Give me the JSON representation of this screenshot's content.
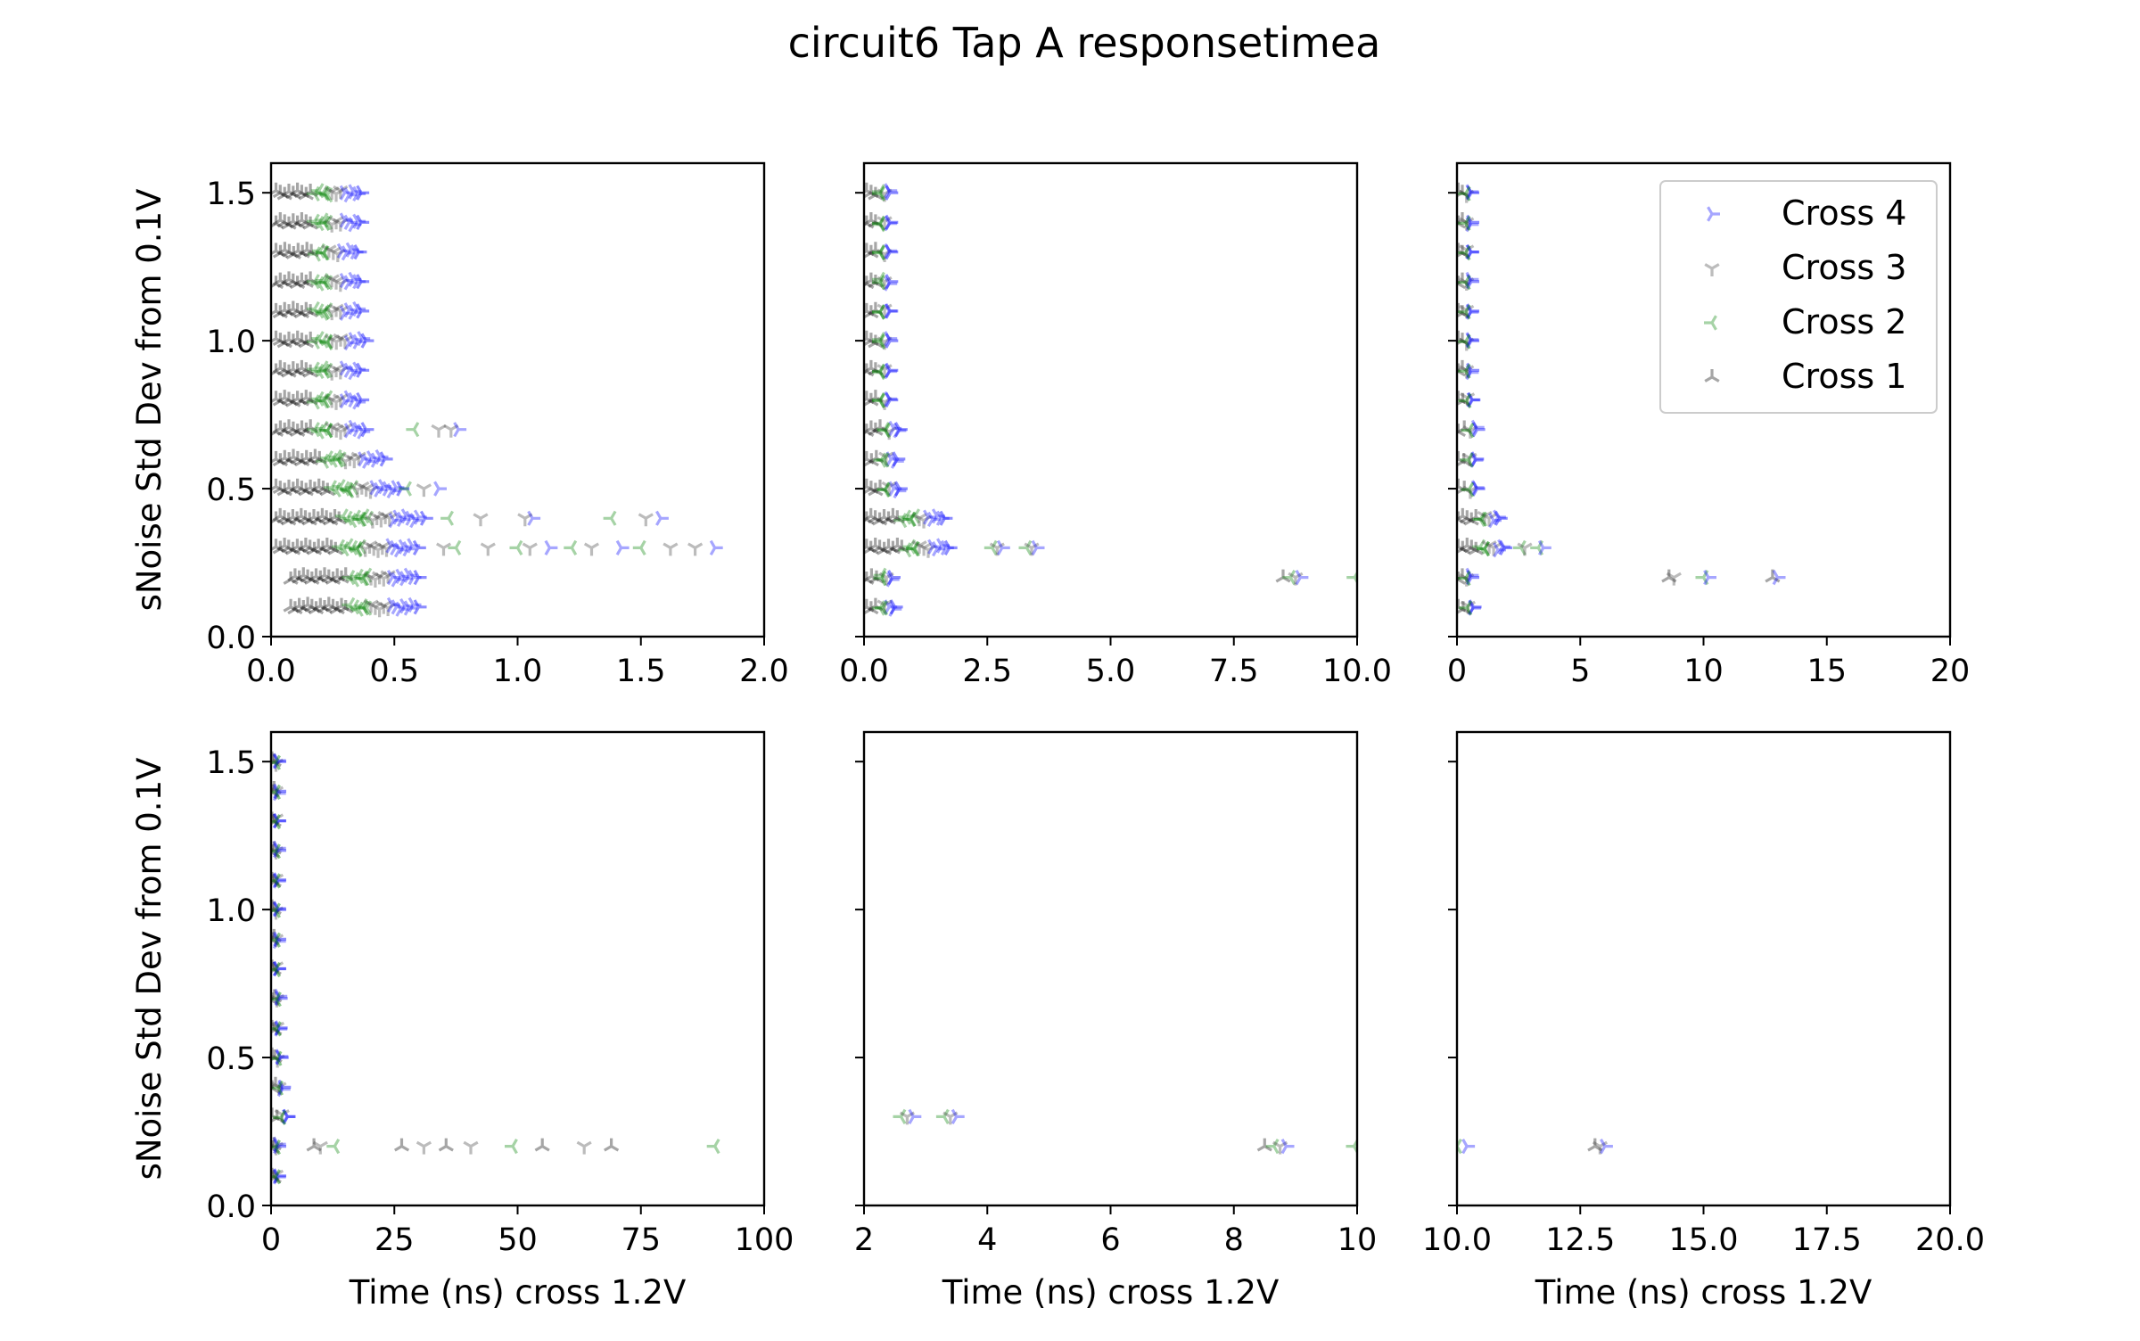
{
  "figure": {
    "title": "circuit6 Tap A responsetimea",
    "colors": {
      "cross4": "#0000ff",
      "cross3": "#404040",
      "cross2": "#008000",
      "cross1": "#000000"
    }
  },
  "legend": {
    "placement": "upper-right of top-right panel",
    "entries": [
      {
        "label": "Cross 4",
        "marker": "tri-right",
        "color": "#0000ff"
      },
      {
        "label": "Cross 3",
        "marker": "tri-down",
        "color": "#404040"
      },
      {
        "label": "Cross 2",
        "marker": "tri-left",
        "color": "#008000"
      },
      {
        "label": "Cross 1",
        "marker": "tri-up",
        "color": "#000000"
      }
    ]
  },
  "chart_data": [
    {
      "type": "scatter",
      "panel": "top-left",
      "xlabel": "",
      "ylabel": "sNoise Std Dev from 0.1V",
      "xlim": [
        0,
        2.0
      ],
      "ylim": [
        0,
        1.6
      ],
      "xticks": [
        "0.0",
        "0.5",
        "1.0",
        "1.5",
        "2.0"
      ],
      "yticks": [
        "0.0",
        "0.5",
        "1.0",
        "1.5"
      ],
      "grid": false,
      "clusters": [
        {
          "y": 1.5,
          "x": [
            0.02,
            0.38
          ]
        },
        {
          "y": 1.4,
          "x": [
            0.02,
            0.38
          ]
        },
        {
          "y": 1.3,
          "x": [
            0.02,
            0.37
          ]
        },
        {
          "y": 1.2,
          "x": [
            0.02,
            0.38
          ]
        },
        {
          "y": 1.1,
          "x": [
            0.02,
            0.38
          ]
        },
        {
          "y": 1.0,
          "x": [
            0.02,
            0.4
          ]
        },
        {
          "y": 0.9,
          "x": [
            0.02,
            0.38
          ]
        },
        {
          "y": 0.8,
          "x": [
            0.02,
            0.38
          ]
        },
        {
          "y": 0.7,
          "x": [
            0.02,
            0.4
          ]
        },
        {
          "y": 0.6,
          "x": [
            0.02,
            0.48
          ]
        },
        {
          "y": 0.5,
          "x": [
            0.02,
            0.55
          ]
        },
        {
          "y": 0.4,
          "x": [
            0.02,
            0.65
          ]
        },
        {
          "y": 0.3,
          "x": [
            0.02,
            0.62
          ]
        },
        {
          "y": 0.2,
          "x": [
            0.08,
            0.62
          ]
        },
        {
          "y": 0.1,
          "x": [
            0.08,
            0.62
          ]
        }
      ],
      "points": [
        {
          "series": "Cross 2",
          "x": 0.58,
          "y": 0.7
        },
        {
          "series": "Cross 3",
          "x": 0.68,
          "y": 0.7
        },
        {
          "series": "Cross 3",
          "x": 0.73,
          "y": 0.7
        },
        {
          "series": "Cross 4",
          "x": 0.76,
          "y": 0.7
        },
        {
          "series": "Cross 2",
          "x": 0.55,
          "y": 0.5
        },
        {
          "series": "Cross 3",
          "x": 0.62,
          "y": 0.5
        },
        {
          "series": "Cross 4",
          "x": 0.68,
          "y": 0.5
        },
        {
          "series": "Cross 2",
          "x": 0.72,
          "y": 0.4
        },
        {
          "series": "Cross 3",
          "x": 0.85,
          "y": 0.4
        },
        {
          "series": "Cross 3",
          "x": 1.03,
          "y": 0.4
        },
        {
          "series": "Cross 4",
          "x": 1.06,
          "y": 0.4
        },
        {
          "series": "Cross 2",
          "x": 1.38,
          "y": 0.4
        },
        {
          "series": "Cross 3",
          "x": 1.52,
          "y": 0.4
        },
        {
          "series": "Cross 4",
          "x": 1.58,
          "y": 0.4
        },
        {
          "series": "Cross 3",
          "x": 0.7,
          "y": 0.3
        },
        {
          "series": "Cross 2",
          "x": 0.75,
          "y": 0.3
        },
        {
          "series": "Cross 3",
          "x": 0.88,
          "y": 0.3
        },
        {
          "series": "Cross 2",
          "x": 1.0,
          "y": 0.3
        },
        {
          "series": "Cross 3",
          "x": 1.05,
          "y": 0.3
        },
        {
          "series": "Cross 4",
          "x": 1.13,
          "y": 0.3
        },
        {
          "series": "Cross 2",
          "x": 1.22,
          "y": 0.3
        },
        {
          "series": "Cross 3",
          "x": 1.3,
          "y": 0.3
        },
        {
          "series": "Cross 4",
          "x": 1.42,
          "y": 0.3
        },
        {
          "series": "Cross 2",
          "x": 1.5,
          "y": 0.3
        },
        {
          "series": "Cross 3",
          "x": 1.62,
          "y": 0.3
        },
        {
          "series": "Cross 3",
          "x": 1.72,
          "y": 0.3
        },
        {
          "series": "Cross 4",
          "x": 1.8,
          "y": 0.3
        }
      ]
    },
    {
      "type": "scatter",
      "panel": "top-middle",
      "xlabel": "",
      "ylabel": "",
      "xlim": [
        0,
        10.0
      ],
      "ylim": [
        0,
        1.6
      ],
      "xticks": [
        "0.0",
        "2.5",
        "5.0",
        "7.5",
        "10.0"
      ],
      "yticks": [],
      "grid": false,
      "clusters": [
        {
          "y": 1.5,
          "x": [
            0.05,
            0.55
          ]
        },
        {
          "y": 1.4,
          "x": [
            0.05,
            0.55
          ]
        },
        {
          "y": 1.3,
          "x": [
            0.05,
            0.55
          ]
        },
        {
          "y": 1.2,
          "x": [
            0.05,
            0.55
          ]
        },
        {
          "y": 1.1,
          "x": [
            0.05,
            0.55
          ]
        },
        {
          "y": 1.0,
          "x": [
            0.05,
            0.55
          ]
        },
        {
          "y": 0.9,
          "x": [
            0.05,
            0.55
          ]
        },
        {
          "y": 0.8,
          "x": [
            0.05,
            0.55
          ]
        },
        {
          "y": 0.7,
          "x": [
            0.05,
            0.75
          ]
        },
        {
          "y": 0.6,
          "x": [
            0.05,
            0.7
          ]
        },
        {
          "y": 0.5,
          "x": [
            0.05,
            0.75
          ]
        },
        {
          "y": 0.4,
          "x": [
            0.05,
            1.7
          ]
        },
        {
          "y": 0.3,
          "x": [
            0.05,
            1.8
          ]
        },
        {
          "y": 0.2,
          "x": [
            0.05,
            0.6
          ]
        },
        {
          "y": 0.1,
          "x": [
            0.05,
            0.65
          ]
        }
      ],
      "points": [
        {
          "series": "Cross 2",
          "x": 2.6,
          "y": 0.3
        },
        {
          "series": "Cross 3",
          "x": 2.7,
          "y": 0.3
        },
        {
          "series": "Cross 4",
          "x": 2.8,
          "y": 0.3
        },
        {
          "series": "Cross 2",
          "x": 3.3,
          "y": 0.3
        },
        {
          "series": "Cross 3",
          "x": 3.4,
          "y": 0.3
        },
        {
          "series": "Cross 4",
          "x": 3.5,
          "y": 0.3
        },
        {
          "series": "Cross 1",
          "x": 8.5,
          "y": 0.2
        },
        {
          "series": "Cross 2",
          "x": 8.65,
          "y": 0.2
        },
        {
          "series": "Cross 3",
          "x": 8.75,
          "y": 0.2
        },
        {
          "series": "Cross 4",
          "x": 8.85,
          "y": 0.2
        },
        {
          "series": "Cross 2",
          "x": 9.95,
          "y": 0.2
        }
      ]
    },
    {
      "type": "scatter",
      "panel": "top-right",
      "xlabel": "",
      "ylabel": "",
      "xlim": [
        0,
        20
      ],
      "ylim": [
        0,
        1.6
      ],
      "xticks": [
        "0",
        "5",
        "10",
        "15",
        "20"
      ],
      "yticks": [],
      "grid": false,
      "clusters": [
        {
          "y": 1.5,
          "x": [
            0.05,
            0.6
          ]
        },
        {
          "y": 1.4,
          "x": [
            0.05,
            0.6
          ]
        },
        {
          "y": 1.3,
          "x": [
            0.05,
            0.6
          ]
        },
        {
          "y": 1.2,
          "x": [
            0.05,
            0.6
          ]
        },
        {
          "y": 1.1,
          "x": [
            0.05,
            0.6
          ]
        },
        {
          "y": 1.0,
          "x": [
            0.05,
            0.6
          ]
        },
        {
          "y": 0.9,
          "x": [
            0.05,
            0.6
          ]
        },
        {
          "y": 0.8,
          "x": [
            0.05,
            0.65
          ]
        },
        {
          "y": 0.7,
          "x": [
            0.05,
            0.85
          ]
        },
        {
          "y": 0.6,
          "x": [
            0.05,
            0.8
          ]
        },
        {
          "y": 0.5,
          "x": [
            0.05,
            0.85
          ]
        },
        {
          "y": 0.4,
          "x": [
            0.05,
            1.8
          ]
        },
        {
          "y": 0.3,
          "x": [
            0.05,
            2.0
          ]
        },
        {
          "y": 0.2,
          "x": [
            0.05,
            0.6
          ]
        },
        {
          "y": 0.1,
          "x": [
            0.05,
            0.7
          ]
        }
      ],
      "points": [
        {
          "series": "Cross 2",
          "x": 2.6,
          "y": 0.3
        },
        {
          "series": "Cross 3",
          "x": 2.75,
          "y": 0.3
        },
        {
          "series": "Cross 2",
          "x": 3.3,
          "y": 0.3
        },
        {
          "series": "Cross 4",
          "x": 3.5,
          "y": 0.3
        },
        {
          "series": "Cross 1",
          "x": 8.6,
          "y": 0.2
        },
        {
          "series": "Cross 3",
          "x": 8.8,
          "y": 0.2
        },
        {
          "series": "Cross 2",
          "x": 10.0,
          "y": 0.2
        },
        {
          "series": "Cross 4",
          "x": 10.2,
          "y": 0.2
        },
        {
          "series": "Cross 1",
          "x": 12.8,
          "y": 0.2
        },
        {
          "series": "Cross 4",
          "x": 13.0,
          "y": 0.2
        }
      ]
    },
    {
      "type": "scatter",
      "panel": "bottom-left",
      "xlabel": "Time (ns) cross 1.2V",
      "ylabel": "sNoise Std Dev from 0.1V",
      "xlim": [
        0,
        100
      ],
      "ylim": [
        0,
        1.6
      ],
      "xticks": [
        "0",
        "25",
        "50",
        "75",
        "100"
      ],
      "yticks": [
        "0.0",
        "0.5",
        "1.0",
        "1.5"
      ],
      "grid": false,
      "clusters": [
        {
          "y": 1.5,
          "x": [
            0.2,
            1.5
          ]
        },
        {
          "y": 1.4,
          "x": [
            0.2,
            1.5
          ]
        },
        {
          "y": 1.3,
          "x": [
            0.2,
            1.5
          ]
        },
        {
          "y": 1.2,
          "x": [
            0.2,
            1.5
          ]
        },
        {
          "y": 1.1,
          "x": [
            0.2,
            1.5
          ]
        },
        {
          "y": 1.0,
          "x": [
            0.2,
            1.5
          ]
        },
        {
          "y": 0.9,
          "x": [
            0.2,
            1.5
          ]
        },
        {
          "y": 0.8,
          "x": [
            0.2,
            1.5
          ]
        },
        {
          "y": 0.7,
          "x": [
            0.2,
            1.8
          ]
        },
        {
          "y": 0.6,
          "x": [
            0.2,
            1.8
          ]
        },
        {
          "y": 0.5,
          "x": [
            0.2,
            2.0
          ]
        },
        {
          "y": 0.4,
          "x": [
            0.2,
            2.5
          ]
        },
        {
          "y": 0.3,
          "x": [
            0.2,
            3.5
          ]
        },
        {
          "y": 0.2,
          "x": [
            0.2,
            1.5
          ]
        },
        {
          "y": 0.1,
          "x": [
            0.2,
            1.5
          ]
        }
      ],
      "points": [
        {
          "series": "Cross 1",
          "x": 8.7,
          "y": 0.2
        },
        {
          "series": "Cross 3",
          "x": 10.0,
          "y": 0.2
        },
        {
          "series": "Cross 2",
          "x": 12.9,
          "y": 0.2
        },
        {
          "series": "Cross 1",
          "x": 26.5,
          "y": 0.2
        },
        {
          "series": "Cross 3",
          "x": 31.0,
          "y": 0.2
        },
        {
          "series": "Cross 1",
          "x": 35.5,
          "y": 0.2
        },
        {
          "series": "Cross 3",
          "x": 40.5,
          "y": 0.2
        },
        {
          "series": "Cross 2",
          "x": 49.0,
          "y": 0.2
        },
        {
          "series": "Cross 1",
          "x": 55.0,
          "y": 0.2
        },
        {
          "series": "Cross 3",
          "x": 63.5,
          "y": 0.2
        },
        {
          "series": "Cross 1",
          "x": 69.0,
          "y": 0.2
        },
        {
          "series": "Cross 2",
          "x": 90.0,
          "y": 0.2
        }
      ]
    },
    {
      "type": "scatter",
      "panel": "bottom-middle",
      "xlabel": "Time (ns) cross 1.2V",
      "ylabel": "",
      "xlim": [
        2,
        10
      ],
      "ylim": [
        0,
        1.6
      ],
      "xticks": [
        "2",
        "4",
        "6",
        "8",
        "10"
      ],
      "yticks": [],
      "grid": false,
      "clusters": [],
      "points": [
        {
          "series": "Cross 2",
          "x": 2.6,
          "y": 0.3
        },
        {
          "series": "Cross 3",
          "x": 2.7,
          "y": 0.3
        },
        {
          "series": "Cross 4",
          "x": 2.8,
          "y": 0.3
        },
        {
          "series": "Cross 2",
          "x": 3.3,
          "y": 0.3
        },
        {
          "series": "Cross 3",
          "x": 3.4,
          "y": 0.3
        },
        {
          "series": "Cross 4",
          "x": 3.5,
          "y": 0.3
        },
        {
          "series": "Cross 1",
          "x": 8.5,
          "y": 0.2
        },
        {
          "series": "Cross 2",
          "x": 8.65,
          "y": 0.2
        },
        {
          "series": "Cross 3",
          "x": 8.75,
          "y": 0.2
        },
        {
          "series": "Cross 4",
          "x": 8.85,
          "y": 0.2
        },
        {
          "series": "Cross 2",
          "x": 9.95,
          "y": 0.2
        }
      ]
    },
    {
      "type": "scatter",
      "panel": "bottom-right",
      "xlabel": "Time (ns) cross 1.2V",
      "ylabel": "",
      "xlim": [
        10,
        20
      ],
      "ylim": [
        0,
        1.6
      ],
      "xticks": [
        "10.0",
        "12.5",
        "15.0",
        "17.5",
        "20.0"
      ],
      "yticks": [],
      "grid": false,
      "clusters": [],
      "points": [
        {
          "series": "Cross 2",
          "x": 10.0,
          "y": 0.2
        },
        {
          "series": "Cross 4",
          "x": 10.2,
          "y": 0.2
        },
        {
          "series": "Cross 1",
          "x": 12.8,
          "y": 0.2
        },
        {
          "series": "Cross 3",
          "x": 12.9,
          "y": 0.2
        },
        {
          "series": "Cross 4",
          "x": 13.0,
          "y": 0.2
        }
      ]
    }
  ]
}
